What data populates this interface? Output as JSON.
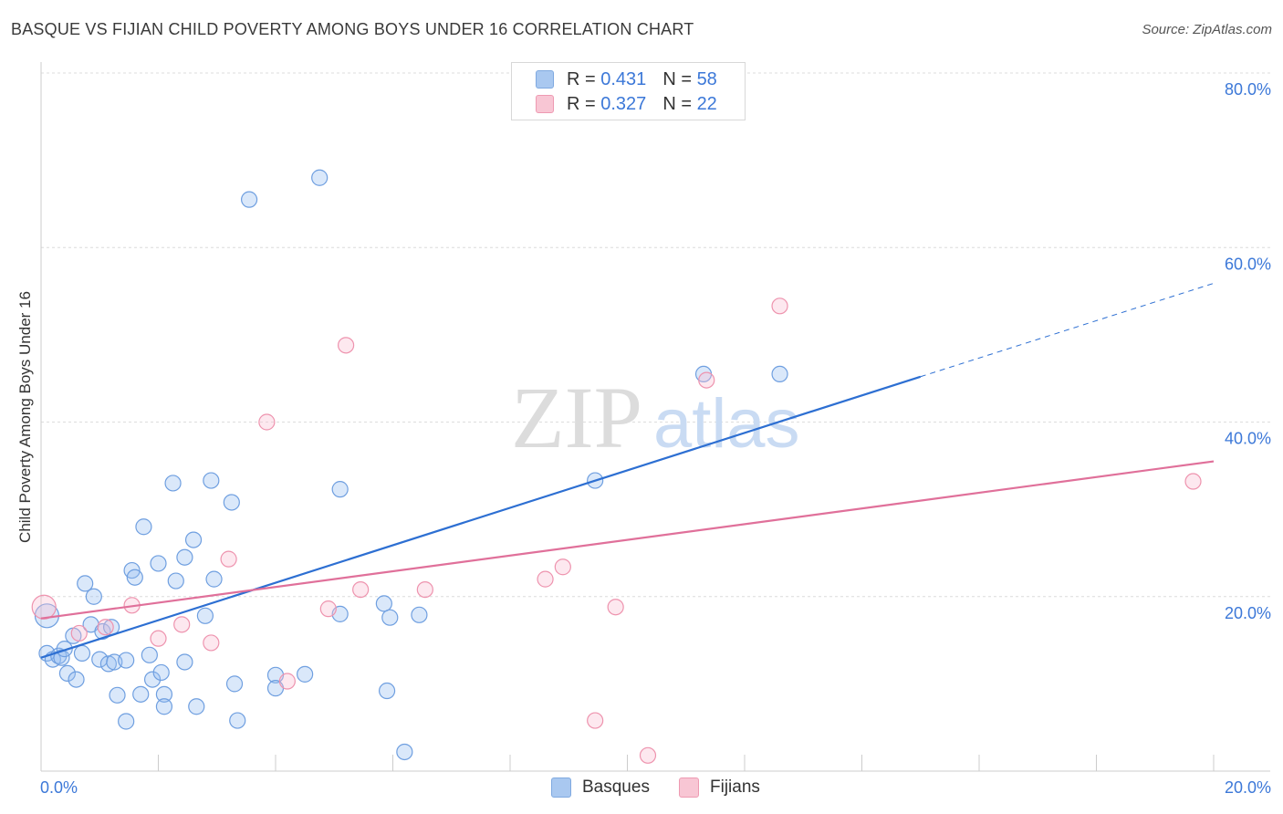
{
  "header": {
    "title": "BASQUE VS FIJIAN CHILD POVERTY AMONG BOYS UNDER 16 CORRELATION CHART",
    "source": "Source: ZipAtlas.com"
  },
  "watermark": {
    "zip": "ZIP",
    "atlas": "atlas"
  },
  "legend": {
    "rows": [
      {
        "r_label": "R =",
        "r_value": "0.431",
        "n_label": "N =",
        "n_value": "58",
        "color": "#a9c8f0",
        "border": "#7fa9e0"
      },
      {
        "r_label": "R =",
        "r_value": "0.327",
        "n_label": "N =",
        "n_value": "22",
        "color": "#f8c6d4",
        "border": "#ee9ab2"
      }
    ]
  },
  "bottom_legend": [
    {
      "label": "Basques",
      "color": "#a9c8f0",
      "border": "#7fa9e0"
    },
    {
      "label": "Fijians",
      "color": "#f8c6d4",
      "border": "#ee9ab2"
    }
  ],
  "colors": {
    "basque_fill": "rgba(150,190,240,0.35)",
    "basque_stroke": "#6f9fe0",
    "basque_line": "#2d6fd2",
    "fijian_fill": "rgba(248,190,208,0.35)",
    "fijian_stroke": "#ee93ae",
    "fijian_line": "#e0709a",
    "tick_text": "#3c78d8",
    "grid": "#dcdcdc"
  },
  "chart_data": {
    "type": "scatter",
    "title": "BASQUE VS FIJIAN CHILD POVERTY AMONG BOYS UNDER 16 CORRELATION CHART",
    "xlabel": "",
    "ylabel": "Child Poverty Among Boys Under 16",
    "xlim": [
      0,
      20
    ],
    "ylim": [
      0,
      80
    ],
    "x_tick_labels": [
      "0.0%",
      "20.0%"
    ],
    "y_tick_labels": [
      "20.0%",
      "40.0%",
      "60.0%",
      "80.0%"
    ],
    "y_ticks": [
      20,
      40,
      60,
      80
    ],
    "grid": true,
    "legend_position": "top-center",
    "series": [
      {
        "name": "Basques",
        "r": 0.431,
        "n": 58,
        "points": [
          [
            0.1,
            17.8
          ],
          [
            0.1,
            13.5
          ],
          [
            0.2,
            12.8
          ],
          [
            0.3,
            13.2
          ],
          [
            0.35,
            13.0
          ],
          [
            0.4,
            14.0
          ],
          [
            0.45,
            11.2
          ],
          [
            0.55,
            15.5
          ],
          [
            0.6,
            10.5
          ],
          [
            0.7,
            13.5
          ],
          [
            0.75,
            21.5
          ],
          [
            0.85,
            16.8
          ],
          [
            0.9,
            20.0
          ],
          [
            1.0,
            12.8
          ],
          [
            1.05,
            16.0
          ],
          [
            1.15,
            12.3
          ],
          [
            1.2,
            16.5
          ],
          [
            1.25,
            12.5
          ],
          [
            1.3,
            8.7
          ],
          [
            1.45,
            12.7
          ],
          [
            1.45,
            5.7
          ],
          [
            1.55,
            23.0
          ],
          [
            1.6,
            22.2
          ],
          [
            1.7,
            8.8
          ],
          [
            1.75,
            28.0
          ],
          [
            1.85,
            13.3
          ],
          [
            1.9,
            10.5
          ],
          [
            2.0,
            23.8
          ],
          [
            2.05,
            11.3
          ],
          [
            2.1,
            8.8
          ],
          [
            2.1,
            7.4
          ],
          [
            2.25,
            33.0
          ],
          [
            2.3,
            21.8
          ],
          [
            2.45,
            24.5
          ],
          [
            2.45,
            12.5
          ],
          [
            2.6,
            26.5
          ],
          [
            2.65,
            7.4
          ],
          [
            2.8,
            17.8
          ],
          [
            2.9,
            33.3
          ],
          [
            2.95,
            22.0
          ],
          [
            3.25,
            30.8
          ],
          [
            3.3,
            10.0
          ],
          [
            3.35,
            5.8
          ],
          [
            3.55,
            65.5
          ],
          [
            4.0,
            11.0
          ],
          [
            4.0,
            9.5
          ],
          [
            4.5,
            11.1
          ],
          [
            4.75,
            68.0
          ],
          [
            5.1,
            18.0
          ],
          [
            5.1,
            32.3
          ],
          [
            5.85,
            19.2
          ],
          [
            5.9,
            9.2
          ],
          [
            5.95,
            17.6
          ],
          [
            6.2,
            2.2
          ],
          [
            6.45,
            17.9
          ],
          [
            9.45,
            33.3
          ],
          [
            11.3,
            45.5
          ],
          [
            12.6,
            45.5
          ]
        ],
        "trend_line": {
          "x": [
            0,
            15
          ],
          "y": [
            13.0,
            45.2
          ],
          "dashed_to": [
            20,
            55.9
          ]
        }
      },
      {
        "name": "Fijians",
        "r": 0.327,
        "n": 22,
        "points": [
          [
            0.05,
            18.8
          ],
          [
            0.65,
            15.8
          ],
          [
            1.1,
            16.5
          ],
          [
            1.55,
            19.0
          ],
          [
            2.0,
            15.2
          ],
          [
            2.4,
            16.8
          ],
          [
            2.9,
            14.7
          ],
          [
            3.2,
            24.3
          ],
          [
            3.85,
            40.0
          ],
          [
            4.2,
            10.3
          ],
          [
            4.9,
            18.6
          ],
          [
            5.2,
            48.8
          ],
          [
            5.45,
            20.8
          ],
          [
            6.55,
            20.8
          ],
          [
            8.6,
            22.0
          ],
          [
            8.9,
            23.4
          ],
          [
            9.45,
            5.8
          ],
          [
            9.8,
            18.8
          ],
          [
            10.35,
            1.8
          ],
          [
            11.35,
            44.8
          ],
          [
            12.6,
            53.3
          ],
          [
            19.65,
            33.2
          ]
        ],
        "trend_line": {
          "x": [
            0,
            20
          ],
          "y": [
            17.5,
            35.5
          ]
        }
      }
    ]
  }
}
